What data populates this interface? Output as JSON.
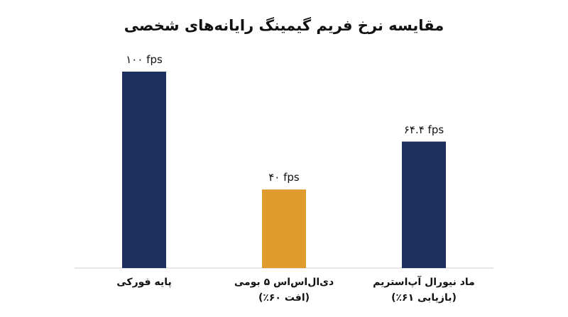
{
  "chart_data": {
    "type": "bar",
    "title": "مقایسه نرخ فریم گیمینگ رایانه‌های شخصی",
    "categories": [
      "پایه فورکی",
      "دی‌ال‌اس‌اس ۵ بومی\n(افت ۶۰٪)",
      "ماد نیورال آپ‌استریم\n(بازیابی ۶۱٪)"
    ],
    "values": [
      100,
      40,
      64.4
    ],
    "value_labels": [
      "۱۰۰ fps",
      "۴۰ fps",
      "۶۴.۴ fps"
    ],
    "colors": [
      "#1c2f5f",
      "#e09b2d",
      "#1c2f5f"
    ]
  }
}
